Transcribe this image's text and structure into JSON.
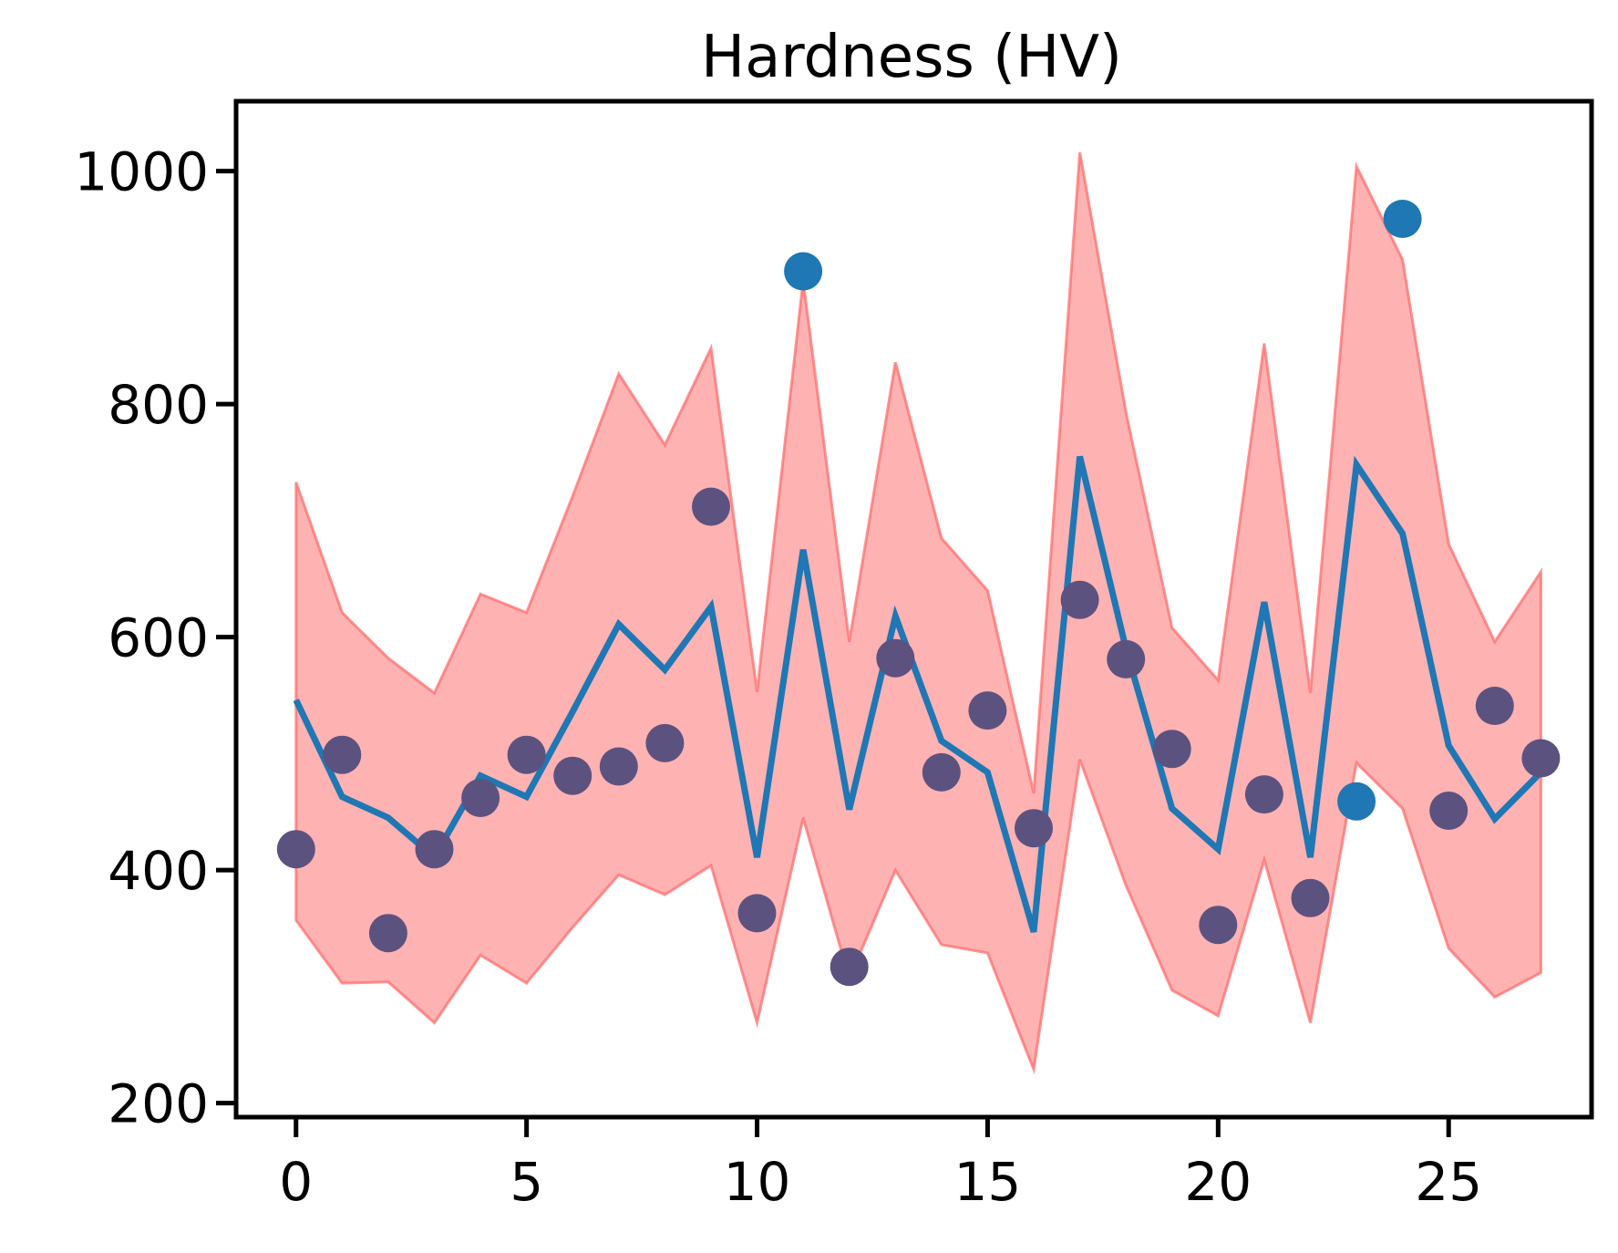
{
  "chart_data": {
    "type": "line",
    "title": "Hardness (HV)",
    "xlabel": "",
    "ylabel": "",
    "xlim": [
      -1.3,
      28.1
    ],
    "ylim": [
      188,
      1060
    ],
    "x_ticks": [
      0,
      5,
      10,
      15,
      20,
      25
    ],
    "y_ticks": [
      200,
      400,
      600,
      800,
      1000
    ],
    "grid": false,
    "legend": "none",
    "x": [
      0,
      1,
      2,
      3,
      4,
      5,
      6,
      7,
      8,
      9,
      10,
      11,
      12,
      13,
      14,
      15,
      16,
      17,
      18,
      19,
      20,
      21,
      22,
      23,
      24,
      25,
      26,
      27
    ],
    "series": [
      {
        "role": "band",
        "upper": [
          733,
          621,
          582,
          552,
          637,
          621,
          721,
          826,
          765,
          848,
          553,
          906,
          596,
          836,
          685,
          640,
          466,
          1016,
          793,
          608,
          563,
          852,
          552,
          1004,
          924,
          680,
          596,
          656
        ],
        "lower": [
          357,
          303,
          304,
          269,
          327,
          303,
          351,
          396,
          379,
          404,
          269,
          445,
          307,
          400,
          336,
          329,
          229,
          495,
          387,
          297,
          275,
          409,
          269,
          492,
          453,
          333,
          291,
          312
        ],
        "color": "#ff6666"
      },
      {
        "role": "line",
        "values": [
          546,
          463,
          445,
          411,
          481,
          463,
          536,
          611,
          572,
          626,
          411,
          675,
          452,
          618,
          511,
          484,
          347,
          755,
          590,
          453,
          418,
          630,
          411,
          748,
          689,
          507,
          444,
          484
        ],
        "color": "#1f77b4"
      },
      {
        "role": "points",
        "values": [
          418,
          499,
          346,
          418,
          462,
          499,
          481,
          489,
          509,
          712,
          363,
          914,
          317,
          582,
          484,
          537,
          436,
          632,
          581,
          504,
          353,
          465,
          376,
          459,
          959,
          451,
          541,
          496
        ],
        "color": "#1f77b4",
        "inside_band_color": "#5c527f"
      }
    ]
  }
}
